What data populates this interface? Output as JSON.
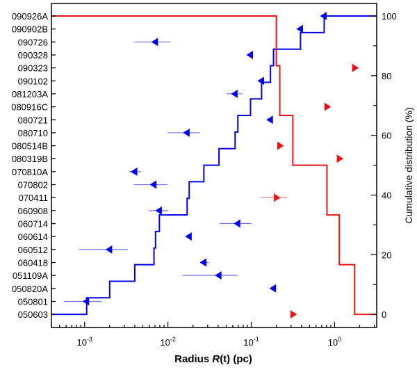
{
  "chart_data": {
    "type": "scatter",
    "xlabel_prefix": "Radius ",
    "xlabel_italic": "R",
    "xlabel_suffix": "(t) (pc)",
    "ylabel_right": "Cumulative distribution (%)",
    "x_scale": "log",
    "xlim": [
      0.0004,
      3.2
    ],
    "ylim_right": [
      -4.4,
      104.2
    ],
    "x_ticks": [
      {
        "base": "10",
        "exp": "-3",
        "value": 0.001
      },
      {
        "base": "10",
        "exp": "-2",
        "value": 0.01
      },
      {
        "base": "10",
        "exp": "-1",
        "value": 0.1
      },
      {
        "base": "10",
        "exp": "0",
        "value": 1
      }
    ],
    "y_right_ticks": [
      "0",
      "20",
      "40",
      "60",
      "80",
      "100"
    ],
    "grid": false,
    "colors": {
      "upper_limit": "#0000ee",
      "lower_limit": "#ee1111",
      "upper_err": "#6f6fff",
      "lower_err": "#ff7777"
    },
    "grbs": [
      {
        "name": "090926A",
        "value": 0.75,
        "limit": "upper"
      },
      {
        "name": "090902B",
        "value": 0.39,
        "limit": "upper"
      },
      {
        "name": "090726",
        "value": 0.0071,
        "limit": "upper",
        "err": [
          0.0039,
          0.0106
        ]
      },
      {
        "name": "090328",
        "value": 0.098,
        "limit": "upper"
      },
      {
        "name": "090323",
        "value": 1.74,
        "limit": "lower"
      },
      {
        "name": "090102",
        "value": 0.133,
        "limit": "upper"
      },
      {
        "name": "081203A",
        "value": 0.064,
        "limit": "upper",
        "err": [
          0.05,
          0.079
        ]
      },
      {
        "name": "080916C",
        "value": 0.81,
        "limit": "lower",
        "err": [
          0.78,
          0.85
        ]
      },
      {
        "name": "080721",
        "value": 0.17,
        "limit": "upper"
      },
      {
        "name": "080710",
        "value": 0.017,
        "limit": "upper",
        "err": [
          0.0099,
          0.0245
        ]
      },
      {
        "name": "080514B",
        "value": 0.22,
        "limit": "lower"
      },
      {
        "name": "080319B",
        "value": 1.14,
        "limit": "lower"
      },
      {
        "name": "070810A",
        "value": 0.004,
        "limit": "upper",
        "err": [
          0.0034,
          0.0048
        ]
      },
      {
        "name": "070802",
        "value": 0.0068,
        "limit": "upper",
        "err": [
          0.0039,
          0.0099
        ]
      },
      {
        "name": "070411",
        "value": 0.2,
        "limit": "lower",
        "err": [
          0.13,
          0.27
        ]
      },
      {
        "name": "060908",
        "value": 0.0079,
        "limit": "upper",
        "err": [
          0.0059,
          0.0101
        ]
      },
      {
        "name": "060714",
        "value": 0.069,
        "limit": "upper",
        "err": [
          0.042,
          0.1
        ]
      },
      {
        "name": "060614",
        "value": 0.018,
        "limit": "upper"
      },
      {
        "name": "060512",
        "value": 0.002,
        "limit": "upper",
        "err": [
          0.00086,
          0.0033
        ]
      },
      {
        "name": "060418",
        "value": 0.027,
        "limit": "upper",
        "err": [
          0.025,
          0.031
        ]
      },
      {
        "name": "051109A",
        "value": 0.041,
        "limit": "upper",
        "err": [
          0.015,
          0.068
        ]
      },
      {
        "name": "050820A",
        "value": 0.185,
        "limit": "upper",
        "err": [
          0.17,
          0.2
        ]
      },
      {
        "name": "050801",
        "value": 0.00106,
        "limit": "upper",
        "err": [
          0.00057,
          0.0016
        ]
      },
      {
        "name": "050603",
        "value": 0.316,
        "limit": "lower"
      }
    ]
  }
}
